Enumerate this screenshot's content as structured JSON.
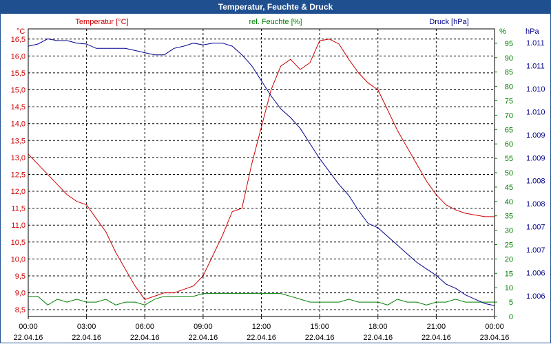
{
  "chart_data": {
    "type": "line",
    "title": "Temperatur, Feuchte & Druck",
    "colors": {
      "temp": "#cc0000",
      "hum": "#008000",
      "press": "#00008b",
      "title_bg": "#1f4f8f",
      "grid": "#000000"
    },
    "axes": {
      "left": {
        "label": "Temperatur [°C]",
        "unit": "°C",
        "min": 8.3,
        "max": 16.8,
        "ticks": [
          "16,5",
          "16,0",
          "15,5",
          "15,0",
          "14,5",
          "14,0",
          "13,5",
          "13,0",
          "12,5",
          "12,0",
          "11,5",
          "11,0",
          "10,5",
          "10,0",
          "9,5",
          "9,0",
          "8,5"
        ]
      },
      "right1": {
        "label": "rel. Feuchte [%]",
        "unit": "%",
        "min": 0,
        "max": 100,
        "ticks": [
          "95",
          "90",
          "85",
          "80",
          "75",
          "70",
          "65",
          "60",
          "55",
          "50",
          "45",
          "40",
          "35",
          "30",
          "25",
          "20",
          "15",
          "10",
          "5",
          "0"
        ]
      },
      "right2": {
        "label": "Druck [hPa]",
        "unit": "hPa",
        "ticks": [
          "1.011",
          "1.011",
          "1.010",
          "1.010",
          "1.009",
          "1.009",
          "1.008",
          "1.008",
          "1.007",
          "1.007",
          "1.006",
          "1.006"
        ]
      }
    },
    "x_ticks": [
      {
        "time": "00:00",
        "date": "22.04.16"
      },
      {
        "time": "03:00",
        "date": "22.04.16"
      },
      {
        "time": "06:00",
        "date": "22.04.16"
      },
      {
        "time": "09:00",
        "date": "22.04.16"
      },
      {
        "time": "12:00",
        "date": "22.04.16"
      },
      {
        "time": "15:00",
        "date": "22.04.16"
      },
      {
        "time": "18:00",
        "date": "22.04.16"
      },
      {
        "time": "21:00",
        "date": "22.04.16"
      },
      {
        "time": "00:00",
        "date": "23.04.16"
      }
    ],
    "x_range_hours": [
      0,
      24
    ],
    "series": [
      {
        "name": "Temperatur",
        "axis": "left",
        "unit": "°C",
        "x": [
          0,
          0.5,
          1,
          1.5,
          2,
          2.5,
          3,
          3.5,
          4,
          4.5,
          5,
          5.5,
          6,
          6.5,
          7,
          7.5,
          8,
          8.5,
          9,
          9.5,
          10,
          10.5,
          11,
          11.5,
          12,
          12.5,
          13,
          13.5,
          14,
          14.5,
          15,
          15.5,
          16,
          16.5,
          17,
          17.5,
          18,
          18.5,
          19,
          19.5,
          20,
          20.5,
          21,
          21.5,
          22,
          22.5,
          23,
          23.5,
          24
        ],
        "values": [
          13.1,
          12.8,
          12.5,
          12.2,
          11.9,
          11.7,
          11.6,
          11.2,
          10.8,
          10.2,
          9.7,
          9.2,
          8.8,
          8.9,
          9.0,
          9.0,
          9.1,
          9.2,
          9.5,
          10.1,
          10.7,
          11.4,
          11.5,
          12.8,
          13.9,
          15.0,
          15.7,
          15.9,
          15.6,
          15.8,
          16.45,
          16.5,
          16.35,
          15.9,
          15.5,
          15.2,
          15.0,
          14.4,
          13.8,
          13.3,
          12.8,
          12.3,
          11.9,
          11.6,
          11.45,
          11.35,
          11.3,
          11.25,
          11.25
        ]
      },
      {
        "name": "rel. Feuchte",
        "axis": "right1",
        "unit": "%",
        "x": [
          0,
          0.5,
          1,
          1.5,
          2,
          2.5,
          3,
          3.5,
          4,
          4.5,
          5,
          5.5,
          6,
          6.5,
          7,
          7.5,
          8,
          8.5,
          9,
          9.5,
          10,
          10.5,
          11,
          11.5,
          12,
          12.5,
          13,
          13.5,
          14,
          14.5,
          15,
          15.5,
          16,
          16.5,
          17,
          17.5,
          18,
          18.5,
          19,
          19.5,
          20,
          20.5,
          21,
          21.5,
          22,
          22.5,
          23,
          23.5,
          24
        ],
        "values": [
          7,
          7,
          4,
          6,
          5,
          6,
          5,
          5,
          6,
          4,
          5,
          5,
          4,
          6,
          7,
          7,
          7,
          7,
          8,
          8,
          8,
          8,
          8,
          8,
          8,
          8,
          8,
          7,
          6,
          5,
          5,
          5,
          5,
          6,
          5,
          5,
          5,
          4,
          6,
          5,
          5,
          4,
          5,
          5,
          6,
          5,
          5,
          5,
          5
        ]
      },
      {
        "name": "Druck",
        "axis": "right2",
        "unit": "hPa",
        "x": [
          0,
          0.5,
          1,
          1.5,
          2,
          2.5,
          3,
          3.5,
          4,
          4.5,
          5,
          5.5,
          6,
          6.5,
          7,
          7.5,
          8,
          8.5,
          9,
          9.5,
          10,
          10.5,
          11,
          11.5,
          12,
          12.5,
          13,
          13.5,
          14,
          14.5,
          15,
          15.5,
          16,
          16.5,
          17,
          17.5,
          18,
          18.5,
          19,
          19.5,
          20,
          20.5,
          21,
          21.5,
          22,
          22.5,
          23,
          23.5,
          24
        ],
        "values": [
          1011.55,
          1011.6,
          1011.72,
          1011.68,
          1011.68,
          1011.62,
          1011.6,
          1011.5,
          1011.5,
          1011.5,
          1011.5,
          1011.45,
          1011.4,
          1011.35,
          1011.35,
          1011.5,
          1011.55,
          1011.62,
          1011.58,
          1011.62,
          1011.62,
          1011.55,
          1011.35,
          1011.1,
          1010.75,
          1010.4,
          1010.1,
          1009.9,
          1009.65,
          1009.3,
          1008.95,
          1008.65,
          1008.35,
          1008.1,
          1007.75,
          1007.45,
          1007.35,
          1007.15,
          1006.95,
          1006.75,
          1006.55,
          1006.4,
          1006.25,
          1006.05,
          1005.95,
          1005.8,
          1005.7,
          1005.6,
          1005.55
        ]
      }
    ]
  }
}
